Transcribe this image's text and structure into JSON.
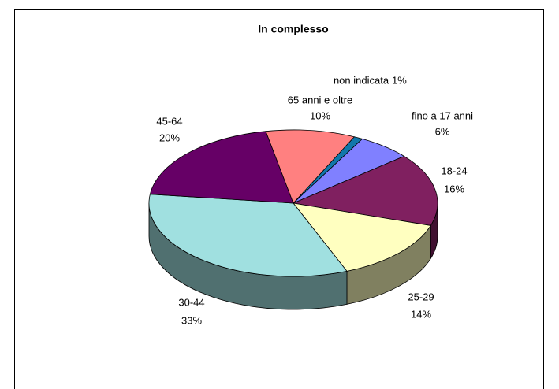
{
  "chart_data": {
    "type": "pie3d",
    "title": "In complesso",
    "categories": [
      "non indicata",
      "fino a 17 anni",
      "18-24",
      "25-29",
      "30-44",
      "45-64",
      "65 anni e oltre"
    ],
    "values": [
      1,
      6,
      16,
      14,
      33,
      20,
      10
    ],
    "value_labels": [
      "1%",
      "6%",
      "16%",
      "14%",
      "33%",
      "20%",
      "10%"
    ],
    "colors": [
      "#1177aa",
      "#8080ff",
      "#802060",
      "#ffffc0",
      "#a0e0e0",
      "#660066",
      "#ff8080"
    ]
  }
}
